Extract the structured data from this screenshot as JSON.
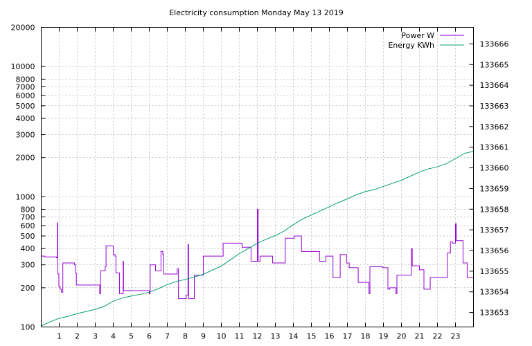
{
  "chart_data": {
    "type": "line",
    "title": "Electricity consumption Monday May 13 2019",
    "xlabel": "",
    "ylabel": "",
    "x_range": [
      0,
      24
    ],
    "x_ticks": [
      1,
      2,
      3,
      4,
      5,
      6,
      7,
      8,
      9,
      10,
      11,
      12,
      13,
      14,
      15,
      16,
      17,
      18,
      19,
      20,
      21,
      22,
      23
    ],
    "y_left": {
      "scale": "log",
      "range": [
        100,
        20000
      ],
      "ticks": [
        100,
        200,
        300,
        400,
        500,
        600,
        700,
        800,
        1000,
        2000,
        3000,
        4000,
        5000,
        6000,
        7000,
        8000,
        10000,
        20000
      ],
      "tick_labels": [
        "100",
        "200",
        "300",
        "400",
        "500",
        "600",
        "700",
        "800",
        "1000",
        "2000",
        "3000",
        "4000",
        "5000",
        "6000",
        "7000",
        "8000",
        "10000",
        "20000"
      ]
    },
    "y_right": {
      "scale": "linear",
      "range": [
        133652.3,
        133666.8
      ],
      "ticks": [
        133653,
        133654,
        133655,
        133656,
        133657,
        133658,
        133659,
        133660,
        133661,
        133662,
        133663,
        133664,
        133665,
        133666
      ],
      "tick_labels": [
        "133653",
        "133654",
        "133655",
        "133656",
        "133657",
        "133658",
        "133659",
        "133660",
        "133661",
        "133662",
        "133663",
        "133664",
        "133665",
        "133666"
      ]
    },
    "grid": true,
    "legend": "top-right",
    "series": [
      {
        "name": "Power W",
        "axis": "left",
        "color": "#9400d3",
        "step": true,
        "points": [
          [
            0,
            350
          ],
          [
            0.2,
            345
          ],
          [
            0.85,
            340
          ],
          [
            0.9,
            630
          ],
          [
            0.92,
            255
          ],
          [
            0.98,
            205
          ],
          [
            1.05,
            195
          ],
          [
            1.12,
            185
          ],
          [
            1.2,
            310
          ],
          [
            1.85,
            300
          ],
          [
            1.9,
            260
          ],
          [
            1.95,
            210
          ],
          [
            3.25,
            180
          ],
          [
            3.3,
            270
          ],
          [
            3.55,
            290
          ],
          [
            3.6,
            420
          ],
          [
            4.0,
            360
          ],
          [
            4.1,
            350
          ],
          [
            4.15,
            260
          ],
          [
            4.35,
            180
          ],
          [
            4.55,
            320
          ],
          [
            4.57,
            190
          ],
          [
            6.0,
            180
          ],
          [
            6.05,
            300
          ],
          [
            6.35,
            270
          ],
          [
            6.65,
            380
          ],
          [
            6.75,
            360
          ],
          [
            6.8,
            255
          ],
          [
            7.55,
            280
          ],
          [
            7.62,
            165
          ],
          [
            8.05,
            175
          ],
          [
            8.15,
            430
          ],
          [
            8.18,
            165
          ],
          [
            8.5,
            250
          ],
          [
            9.0,
            350
          ],
          [
            10.1,
            440
          ],
          [
            11.15,
            410
          ],
          [
            11.65,
            320
          ],
          [
            12.0,
            800
          ],
          [
            12.05,
            320
          ],
          [
            12.15,
            350
          ],
          [
            12.85,
            310
          ],
          [
            13.55,
            480
          ],
          [
            14.05,
            500
          ],
          [
            14.45,
            380
          ],
          [
            15.45,
            320
          ],
          [
            15.8,
            350
          ],
          [
            16.2,
            240
          ],
          [
            16.6,
            360
          ],
          [
            16.95,
            310
          ],
          [
            17.1,
            285
          ],
          [
            17.6,
            220
          ],
          [
            18.2,
            180
          ],
          [
            18.25,
            290
          ],
          [
            18.95,
            285
          ],
          [
            19.25,
            195
          ],
          [
            19.35,
            200
          ],
          [
            19.7,
            180
          ],
          [
            19.75,
            250
          ],
          [
            20.55,
            400
          ],
          [
            20.6,
            295
          ],
          [
            21.0,
            275
          ],
          [
            21.25,
            195
          ],
          [
            21.6,
            240
          ],
          [
            22.55,
            370
          ],
          [
            22.72,
            450
          ],
          [
            22.85,
            440
          ],
          [
            23.0,
            620
          ],
          [
            23.05,
            460
          ],
          [
            23.42,
            310
          ],
          [
            23.65,
            240
          ],
          [
            24.0,
            240
          ]
        ]
      },
      {
        "name": "Energy KWh",
        "axis": "right",
        "color": "#009e73",
        "step": false,
        "points": [
          [
            0,
            133652.35
          ],
          [
            0.5,
            133652.55
          ],
          [
            1,
            133652.72
          ],
          [
            1.5,
            133652.82
          ],
          [
            2,
            133652.95
          ],
          [
            2.5,
            133653.05
          ],
          [
            3,
            133653.15
          ],
          [
            3.5,
            133653.3
          ],
          [
            4,
            133653.55
          ],
          [
            4.5,
            133653.7
          ],
          [
            5,
            133653.8
          ],
          [
            5.5,
            133653.88
          ],
          [
            6,
            133653.98
          ],
          [
            6.5,
            133654.15
          ],
          [
            7,
            133654.35
          ],
          [
            7.5,
            133654.5
          ],
          [
            8,
            133654.6
          ],
          [
            8.5,
            133654.72
          ],
          [
            9,
            133654.85
          ],
          [
            9.5,
            133655.05
          ],
          [
            10,
            133655.25
          ],
          [
            10.5,
            133655.55
          ],
          [
            11,
            133655.85
          ],
          [
            11.5,
            133656.1
          ],
          [
            12,
            133656.35
          ],
          [
            12.5,
            133656.55
          ],
          [
            13,
            133656.72
          ],
          [
            13.5,
            133656.95
          ],
          [
            14,
            133657.25
          ],
          [
            14.5,
            133657.52
          ],
          [
            15,
            133657.72
          ],
          [
            15.5,
            133657.92
          ],
          [
            16,
            133658.12
          ],
          [
            16.5,
            133658.32
          ],
          [
            17,
            133658.5
          ],
          [
            17.5,
            133658.7
          ],
          [
            18,
            133658.85
          ],
          [
            18.5,
            133658.95
          ],
          [
            19,
            133659.1
          ],
          [
            19.5,
            133659.25
          ],
          [
            20,
            133659.4
          ],
          [
            20.5,
            133659.6
          ],
          [
            21,
            133659.8
          ],
          [
            21.5,
            133659.95
          ],
          [
            22,
            133660.05
          ],
          [
            22.5,
            133660.2
          ],
          [
            23,
            133660.45
          ],
          [
            23.5,
            133660.7
          ],
          [
            24,
            133660.8
          ]
        ]
      }
    ]
  }
}
